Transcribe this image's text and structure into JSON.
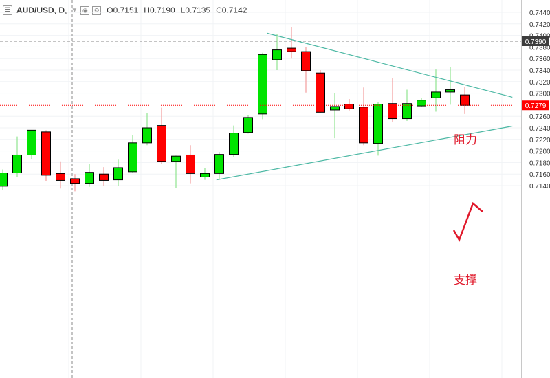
{
  "header": {
    "symbol": "AUD/USD, D,",
    "open": "O0.7151",
    "high": "H0.7190",
    "low": "L0.7135",
    "close": "C0.7142"
  },
  "colors": {
    "up": "#00e400",
    "down": "#ff0000",
    "trendline": "#4cb8a4",
    "annotation": "#e0182a",
    "price_label": "#3c3c3c",
    "last_label": "#ff0000"
  },
  "chart_data": {
    "type": "candlestick",
    "ylim": [
      0.713,
      0.745
    ],
    "y_ticks": [
      "0.7440",
      "0.7420",
      "0.7400",
      "0.7380",
      "0.7360",
      "0.7340",
      "0.7320",
      "0.7300",
      "0.7260",
      "0.7240",
      "0.7220",
      "0.7200",
      "0.7180",
      "0.7160",
      "0.7140"
    ],
    "candles": [
      {
        "o": 0.7139,
        "h": 0.7168,
        "l": 0.7132,
        "c": 0.7162
      },
      {
        "o": 0.7162,
        "h": 0.7225,
        "l": 0.7155,
        "c": 0.7193
      },
      {
        "o": 0.7193,
        "h": 0.7236,
        "l": 0.7186,
        "c": 0.7236
      },
      {
        "o": 0.7233,
        "h": 0.7236,
        "l": 0.7148,
        "c": 0.7158
      },
      {
        "o": 0.7161,
        "h": 0.7182,
        "l": 0.7135,
        "c": 0.7149
      },
      {
        "o": 0.7152,
        "h": 0.716,
        "l": 0.713,
        "c": 0.7144
      },
      {
        "o": 0.7144,
        "h": 0.7178,
        "l": 0.7138,
        "c": 0.7163
      },
      {
        "o": 0.716,
        "h": 0.7172,
        "l": 0.714,
        "c": 0.7149
      },
      {
        "o": 0.715,
        "h": 0.7185,
        "l": 0.714,
        "c": 0.7171
      },
      {
        "o": 0.7164,
        "h": 0.7228,
        "l": 0.7162,
        "c": 0.7214
      },
      {
        "o": 0.7214,
        "h": 0.7266,
        "l": 0.721,
        "c": 0.724
      },
      {
        "o": 0.7244,
        "h": 0.7275,
        "l": 0.7177,
        "c": 0.7182
      },
      {
        "o": 0.7182,
        "h": 0.7192,
        "l": 0.7136,
        "c": 0.7191
      },
      {
        "o": 0.7193,
        "h": 0.721,
        "l": 0.7144,
        "c": 0.7161
      },
      {
        "o": 0.7155,
        "h": 0.717,
        "l": 0.715,
        "c": 0.7161
      },
      {
        "o": 0.7161,
        "h": 0.7198,
        "l": 0.715,
        "c": 0.7194
      },
      {
        "o": 0.7194,
        "h": 0.7244,
        "l": 0.719,
        "c": 0.7231
      },
      {
        "o": 0.7232,
        "h": 0.7262,
        "l": 0.723,
        "c": 0.7258
      },
      {
        "o": 0.7264,
        "h": 0.737,
        "l": 0.7255,
        "c": 0.7367
      },
      {
        "o": 0.7358,
        "h": 0.7403,
        "l": 0.734,
        "c": 0.7375
      },
      {
        "o": 0.7378,
        "h": 0.7414,
        "l": 0.736,
        "c": 0.7372
      },
      {
        "o": 0.7372,
        "h": 0.738,
        "l": 0.7301,
        "c": 0.7339
      },
      {
        "o": 0.7335,
        "h": 0.734,
        "l": 0.7265,
        "c": 0.7267
      },
      {
        "o": 0.7271,
        "h": 0.73,
        "l": 0.7222,
        "c": 0.7277
      },
      {
        "o": 0.7281,
        "h": 0.729,
        "l": 0.727,
        "c": 0.7273
      },
      {
        "o": 0.7276,
        "h": 0.731,
        "l": 0.721,
        "c": 0.7214
      },
      {
        "o": 0.7213,
        "h": 0.7284,
        "l": 0.7192,
        "c": 0.7281
      },
      {
        "o": 0.7282,
        "h": 0.7326,
        "l": 0.725,
        "c": 0.7256
      },
      {
        "o": 0.7256,
        "h": 0.7306,
        "l": 0.7252,
        "c": 0.7282
      },
      {
        "o": 0.7278,
        "h": 0.7292,
        "l": 0.7276,
        "c": 0.7288
      },
      {
        "o": 0.7292,
        "h": 0.7341,
        "l": 0.7268,
        "c": 0.7302
      },
      {
        "o": 0.7302,
        "h": 0.7345,
        "l": 0.728,
        "c": 0.7306
      },
      {
        "o": 0.7297,
        "h": 0.7311,
        "l": 0.7264,
        "c": 0.7279
      }
    ],
    "hline_dashed": {
      "value": 0.739,
      "label": "0.7390"
    },
    "hline_last": {
      "value": 0.7279,
      "label": "0.7279"
    },
    "trendlines": [
      {
        "name": "resistance",
        "from": {
          "bar": 18.3,
          "price": 0.7404
        },
        "to": {
          "bar": 35.3,
          "price": 0.7293
        }
      },
      {
        "name": "support",
        "from": {
          "bar": 14.8,
          "price": 0.715
        },
        "to": {
          "bar": 35.3,
          "price": 0.7243
        }
      }
    ],
    "annotations": [
      {
        "name": "resistance-label",
        "text": "阻力"
      },
      {
        "name": "support-label",
        "text": "支撑"
      }
    ]
  }
}
